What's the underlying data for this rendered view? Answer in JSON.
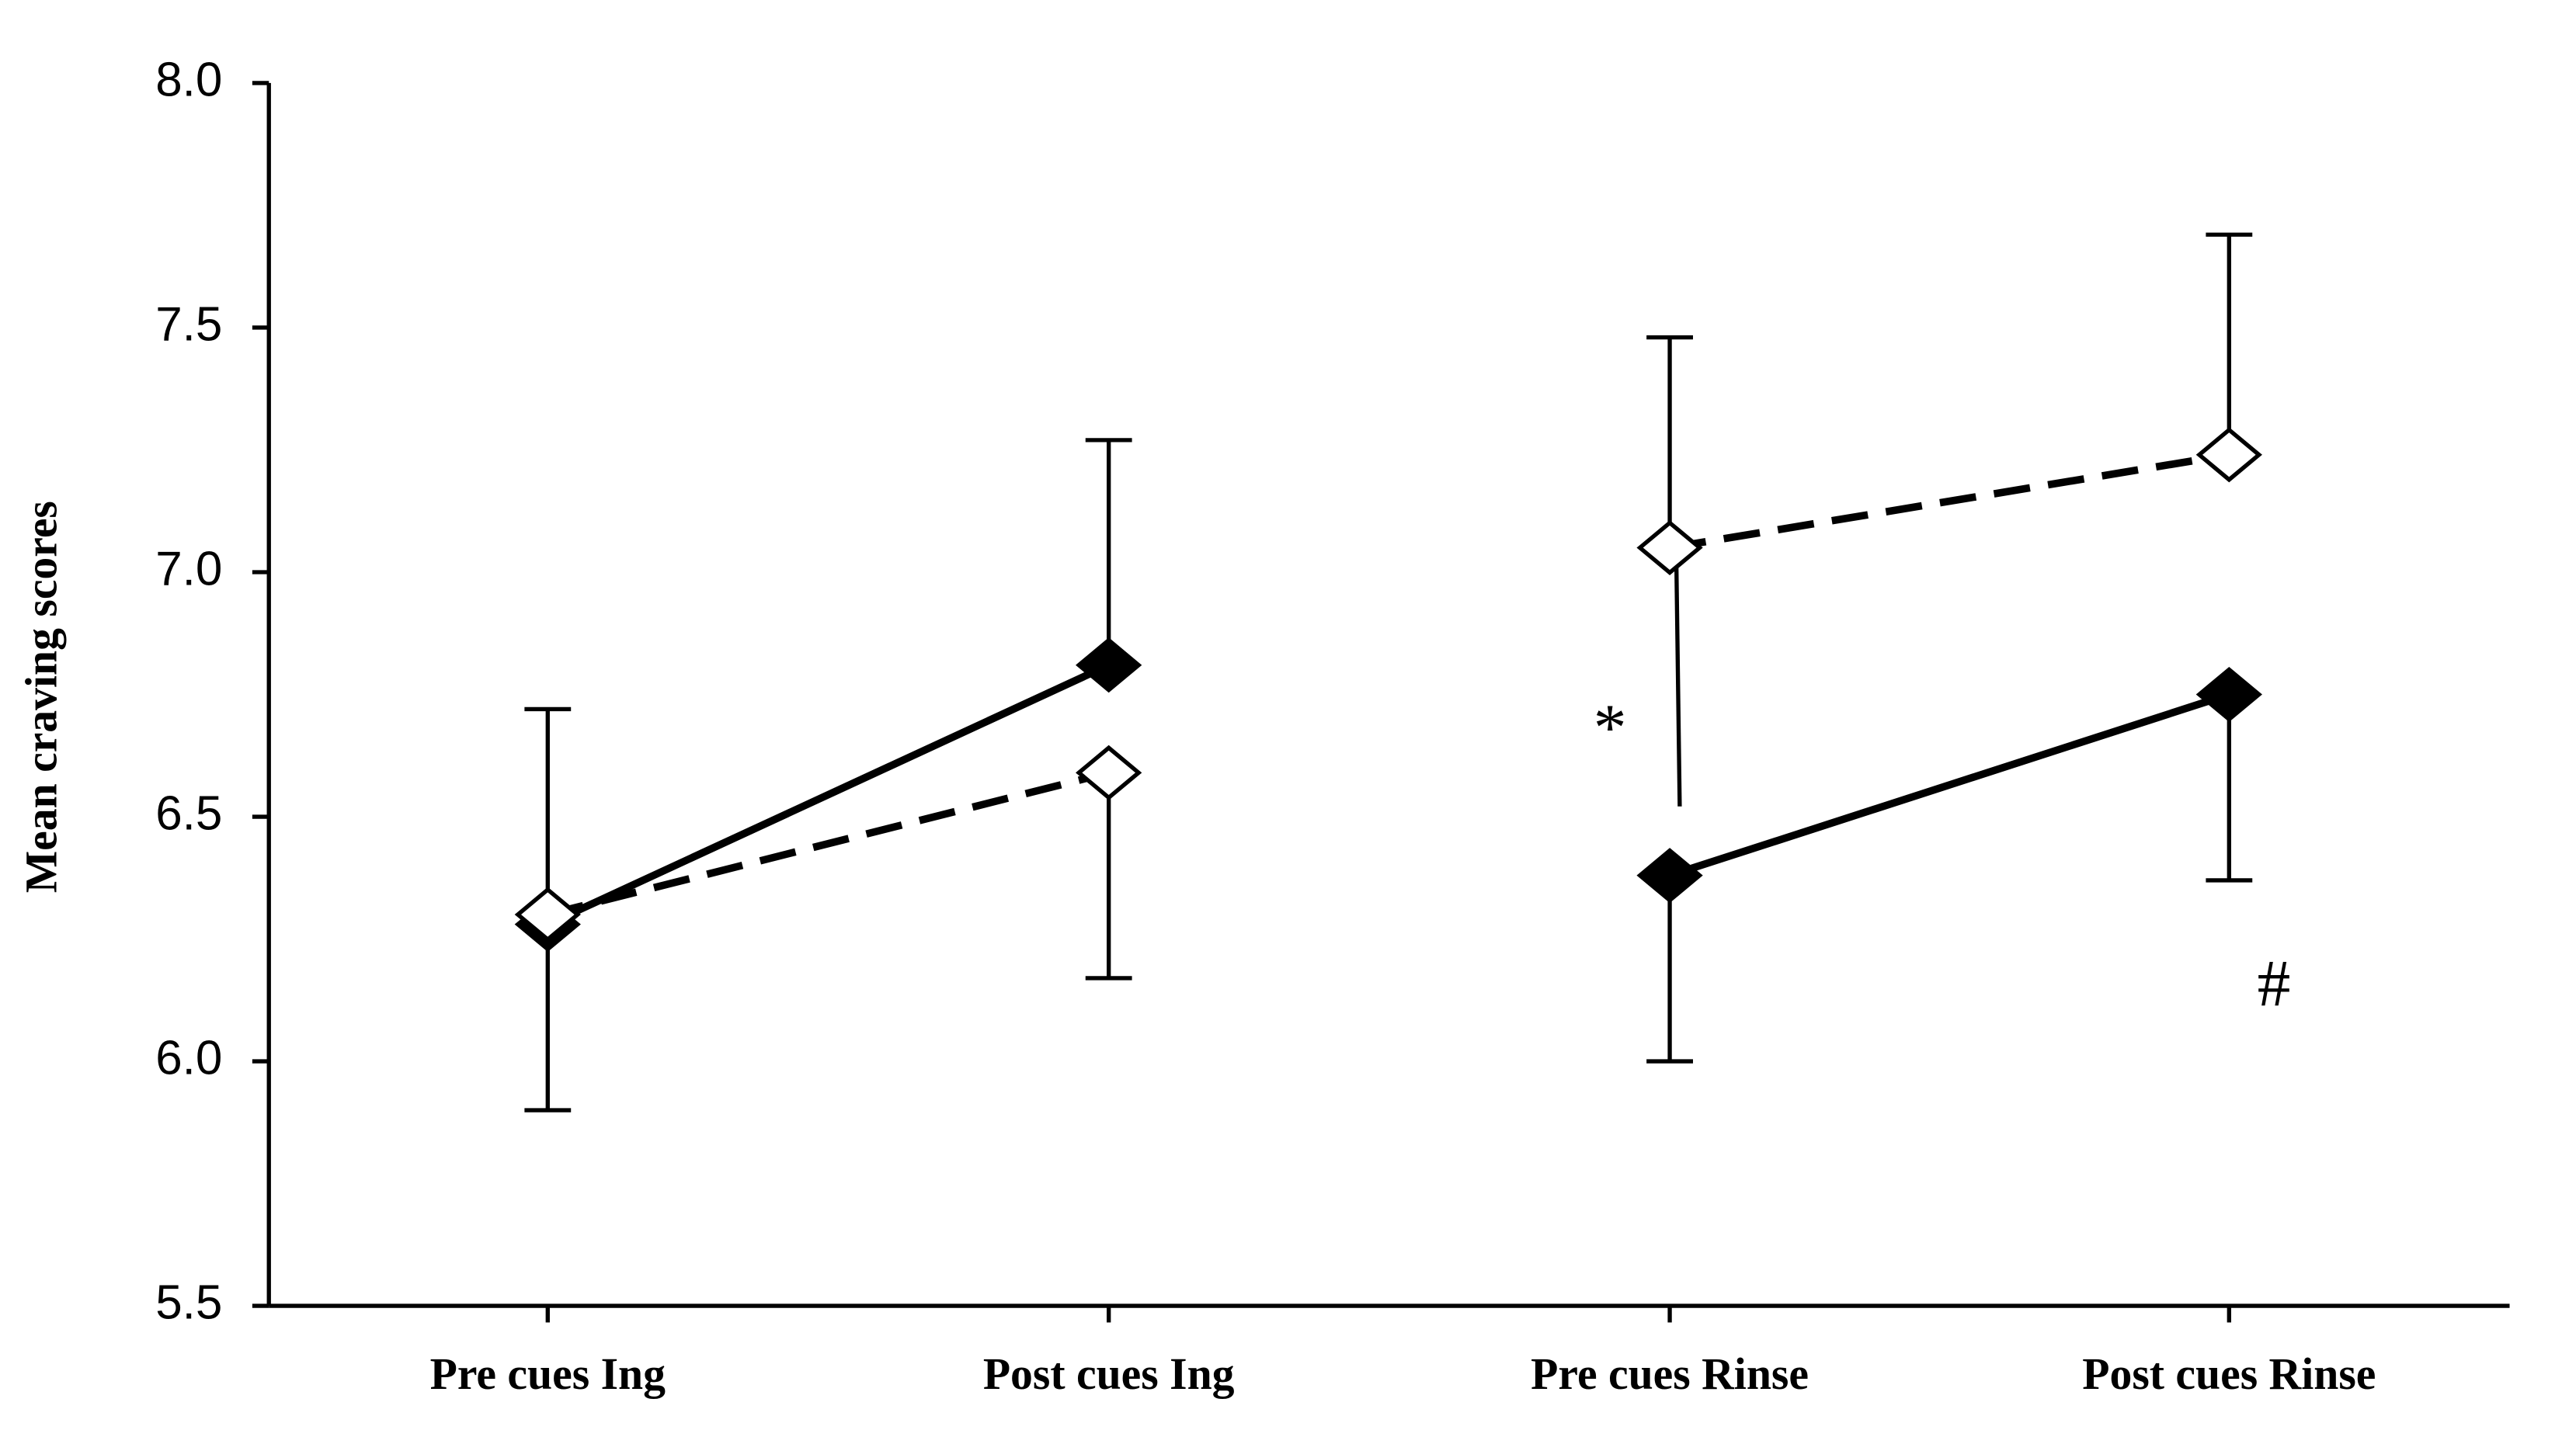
{
  "chart_data": {
    "type": "line",
    "y_label": "Mean craving scores",
    "categories": [
      "Pre cues Ing",
      "Post cues Ing",
      "Pre cues Rinse",
      "Post cues Rinse"
    ],
    "series": [
      {
        "color": "#000000",
        "marker": "filled-diamond",
        "dashed": false,
        "values": [
          6.28,
          6.81,
          6.38,
          6.75
        ],
        "errors": [
          0.38,
          0.46,
          0.38,
          0.38
        ],
        "error_direction": [
          "down",
          "up",
          "down",
          "down"
        ]
      },
      {
        "color": "#000000",
        "marker": "open-diamond",
        "dashed": true,
        "values": [
          6.3,
          6.59,
          7.05,
          7.24
        ],
        "errors": [
          0.42,
          0.42,
          0.43,
          0.45
        ],
        "error_direction": [
          "up",
          "down",
          "up",
          "up"
        ]
      }
    ],
    "annotations": [
      "*",
      "#"
    ],
    "ylim": [
      5.5,
      8.0
    ],
    "yticks": [
      5.5,
      {
        "value": 6,
        "label": "6.0"
      },
      6.5,
      {
        "value": 7,
        "label": "7.0"
      },
      7.5,
      {
        "value": 8,
        "label": "8.0"
      }
    ],
    "grid": false
  }
}
